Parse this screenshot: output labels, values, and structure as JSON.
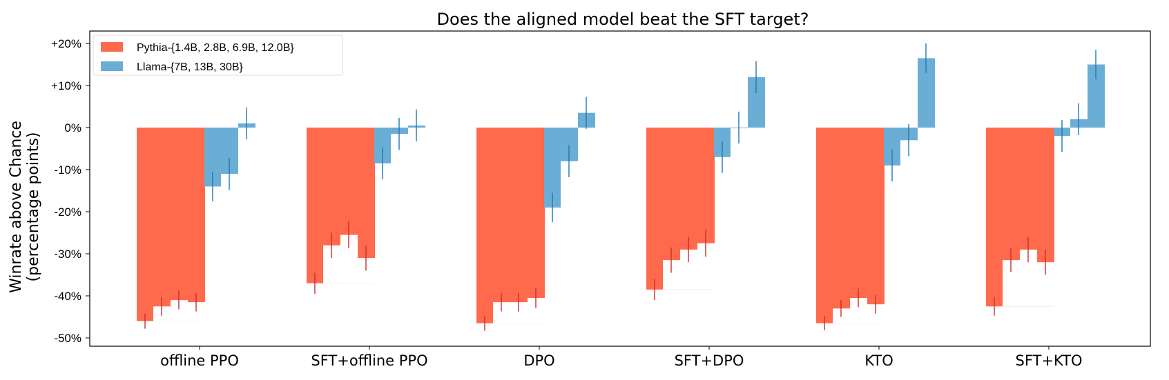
{
  "chart_data": {
    "type": "bar",
    "title": "Does the aligned model beat the SFT target?",
    "ylabel_lines": [
      "Winrate above Chance",
      "(percentage points)"
    ],
    "xlabel": "",
    "ylim": [
      -51,
      23
    ],
    "yticks": [
      {
        "value": 20,
        "label": "+20%"
      },
      {
        "value": 10,
        "label": "+10%"
      },
      {
        "value": 0,
        "label": "0%"
      },
      {
        "value": -10,
        "label": "-10%"
      },
      {
        "value": -20,
        "label": "-20%"
      },
      {
        "value": -30,
        "label": "-30%"
      },
      {
        "value": -40,
        "label": "-40%"
      },
      {
        "value": -50,
        "label": "-50%"
      }
    ],
    "categories": [
      "offline PPO",
      "SFT+offline PPO",
      "DPO",
      "SFT+DPO",
      "KTO",
      "SFT+KTO"
    ],
    "legend": {
      "location": "upper left"
    },
    "series": [
      {
        "name": "Pythia-{1.4B, 2.8B, 6.9B, 12.0B}",
        "color": "#ff6a4d",
        "error_color": "#d62728",
        "models": [
          "1.4B",
          "2.8B",
          "6.9B",
          "12.0B"
        ],
        "values": [
          [
            -46,
            -42.5,
            -41,
            -41.5
          ],
          [
            -37,
            -28,
            -25.5,
            -31
          ],
          [
            -46.5,
            -41.5,
            -41.5,
            -40.5
          ],
          [
            -38.5,
            -31.5,
            -29,
            -27.5
          ],
          [
            -46.5,
            -43,
            -40.5,
            -42
          ],
          [
            -42.5,
            -31.5,
            -29,
            -32
          ]
        ],
        "errors": [
          [
            1.8,
            2.2,
            2.2,
            2.2
          ],
          [
            2.5,
            3,
            3.2,
            3
          ],
          [
            1.8,
            2.2,
            2.2,
            2.4
          ],
          [
            2.5,
            3,
            3,
            3.2
          ],
          [
            1.7,
            2,
            2.2,
            2.2
          ],
          [
            2.2,
            2.8,
            3,
            3
          ]
        ]
      },
      {
        "name": "Llama-{7B, 13B, 30B}",
        "color": "#6aaed6",
        "error_color": "#1f77b4",
        "models": [
          "7B",
          "13B",
          "30B"
        ],
        "values": [
          [
            -14,
            -11,
            1
          ],
          [
            -8.5,
            -1.5,
            0.5
          ],
          [
            -19,
            -8,
            3.5
          ],
          [
            -7,
            0,
            12
          ],
          [
            -9,
            -3,
            16.5
          ],
          [
            -2,
            2,
            15
          ]
        ],
        "errors": [
          [
            3.5,
            3.8,
            3.8
          ],
          [
            3.8,
            3.8,
            3.8
          ],
          [
            3.5,
            3.8,
            3.8
          ],
          [
            3.8,
            3.8,
            3.8
          ],
          [
            3.8,
            3.8,
            3.5
          ],
          [
            3.8,
            3.8,
            3.5
          ]
        ]
      }
    ]
  }
}
